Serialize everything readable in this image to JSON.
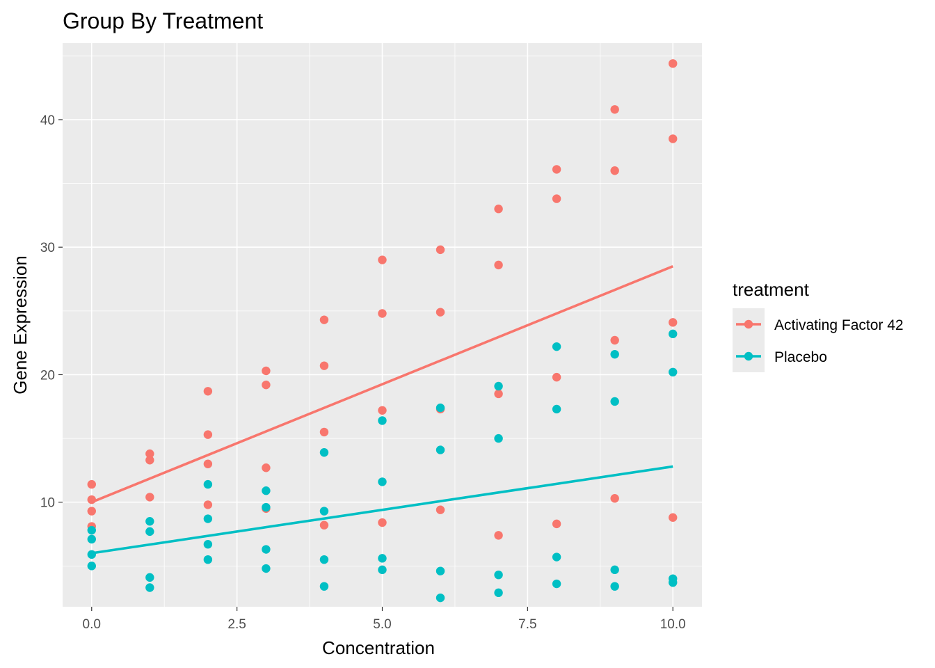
{
  "chart_data": {
    "type": "scatter",
    "title": "Group By Treatment",
    "xlabel": "Concentration",
    "ylabel": "Gene Expression",
    "xlim": [
      -0.5,
      10.5
    ],
    "ylim": [
      1.8,
      46.0
    ],
    "x_ticks": [
      0.0,
      2.5,
      5.0,
      7.5,
      10.0
    ],
    "x_tick_labels": [
      "0.0",
      "2.5",
      "5.0",
      "7.5",
      "10.0"
    ],
    "y_ticks": [
      10,
      20,
      30,
      40
    ],
    "y_tick_labels": [
      "10",
      "20",
      "30",
      "40"
    ],
    "grid": true,
    "legend": {
      "title": "treatment",
      "position": "right",
      "entries": [
        "Activating Factor 42",
        "Placebo"
      ]
    },
    "series": [
      {
        "name": "Activating Factor 42",
        "color": "#F8766D",
        "points": [
          [
            0,
            11.4
          ],
          [
            0,
            10.2
          ],
          [
            0,
            9.3
          ],
          [
            0,
            8.1
          ],
          [
            1,
            13.8
          ],
          [
            1,
            13.3
          ],
          [
            1,
            10.4
          ],
          [
            2,
            18.7
          ],
          [
            2,
            15.3
          ],
          [
            2,
            13.0
          ],
          [
            2,
            9.8
          ],
          [
            3,
            20.3
          ],
          [
            3,
            19.2
          ],
          [
            3,
            12.7
          ],
          [
            3,
            9.5
          ],
          [
            4,
            24.3
          ],
          [
            4,
            20.7
          ],
          [
            4,
            15.5
          ],
          [
            4,
            8.2
          ],
          [
            5,
            29.0
          ],
          [
            5,
            24.8
          ],
          [
            5,
            17.2
          ],
          [
            5,
            8.4
          ],
          [
            6,
            29.8
          ],
          [
            6,
            24.9
          ],
          [
            6,
            17.3
          ],
          [
            6,
            9.4
          ],
          [
            7,
            33.0
          ],
          [
            7,
            28.6
          ],
          [
            7,
            18.5
          ],
          [
            7,
            7.4
          ],
          [
            8,
            36.1
          ],
          [
            8,
            33.8
          ],
          [
            8,
            19.8
          ],
          [
            8,
            8.3
          ],
          [
            9,
            40.8
          ],
          [
            9,
            36.0
          ],
          [
            9,
            22.7
          ],
          [
            9,
            10.3
          ],
          [
            10,
            44.4
          ],
          [
            10,
            38.5
          ],
          [
            10,
            24.1
          ],
          [
            10,
            8.8
          ]
        ],
        "fit_line": [
          [
            0,
            10.0
          ],
          [
            10,
            28.5
          ]
        ]
      },
      {
        "name": "Placebo",
        "color": "#00BFC4",
        "points": [
          [
            0,
            7.8
          ],
          [
            0,
            7.1
          ],
          [
            0,
            5.9
          ],
          [
            0,
            5.0
          ],
          [
            1,
            8.5
          ],
          [
            1,
            7.7
          ],
          [
            1,
            4.1
          ],
          [
            1,
            3.3
          ],
          [
            2,
            11.4
          ],
          [
            2,
            8.7
          ],
          [
            2,
            6.7
          ],
          [
            2,
            5.5
          ],
          [
            3,
            10.9
          ],
          [
            3,
            9.6
          ],
          [
            3,
            6.3
          ],
          [
            3,
            4.8
          ],
          [
            4,
            13.9
          ],
          [
            4,
            9.3
          ],
          [
            4,
            5.5
          ],
          [
            4,
            3.4
          ],
          [
            5,
            16.4
          ],
          [
            5,
            11.6
          ],
          [
            5,
            5.6
          ],
          [
            5,
            4.7
          ],
          [
            6,
            17.4
          ],
          [
            6,
            14.1
          ],
          [
            6,
            4.6
          ],
          [
            6,
            2.5
          ],
          [
            7,
            19.1
          ],
          [
            7,
            15.0
          ],
          [
            7,
            4.3
          ],
          [
            7,
            2.9
          ],
          [
            8,
            22.2
          ],
          [
            8,
            17.3
          ],
          [
            8,
            5.7
          ],
          [
            8,
            3.6
          ],
          [
            9,
            21.6
          ],
          [
            9,
            17.9
          ],
          [
            9,
            4.7
          ],
          [
            9,
            3.4
          ],
          [
            10,
            23.2
          ],
          [
            10,
            20.2
          ],
          [
            10,
            4.0
          ],
          [
            10,
            3.7
          ]
        ],
        "fit_line": [
          [
            0,
            6.0
          ],
          [
            10,
            12.8
          ]
        ]
      }
    ]
  }
}
